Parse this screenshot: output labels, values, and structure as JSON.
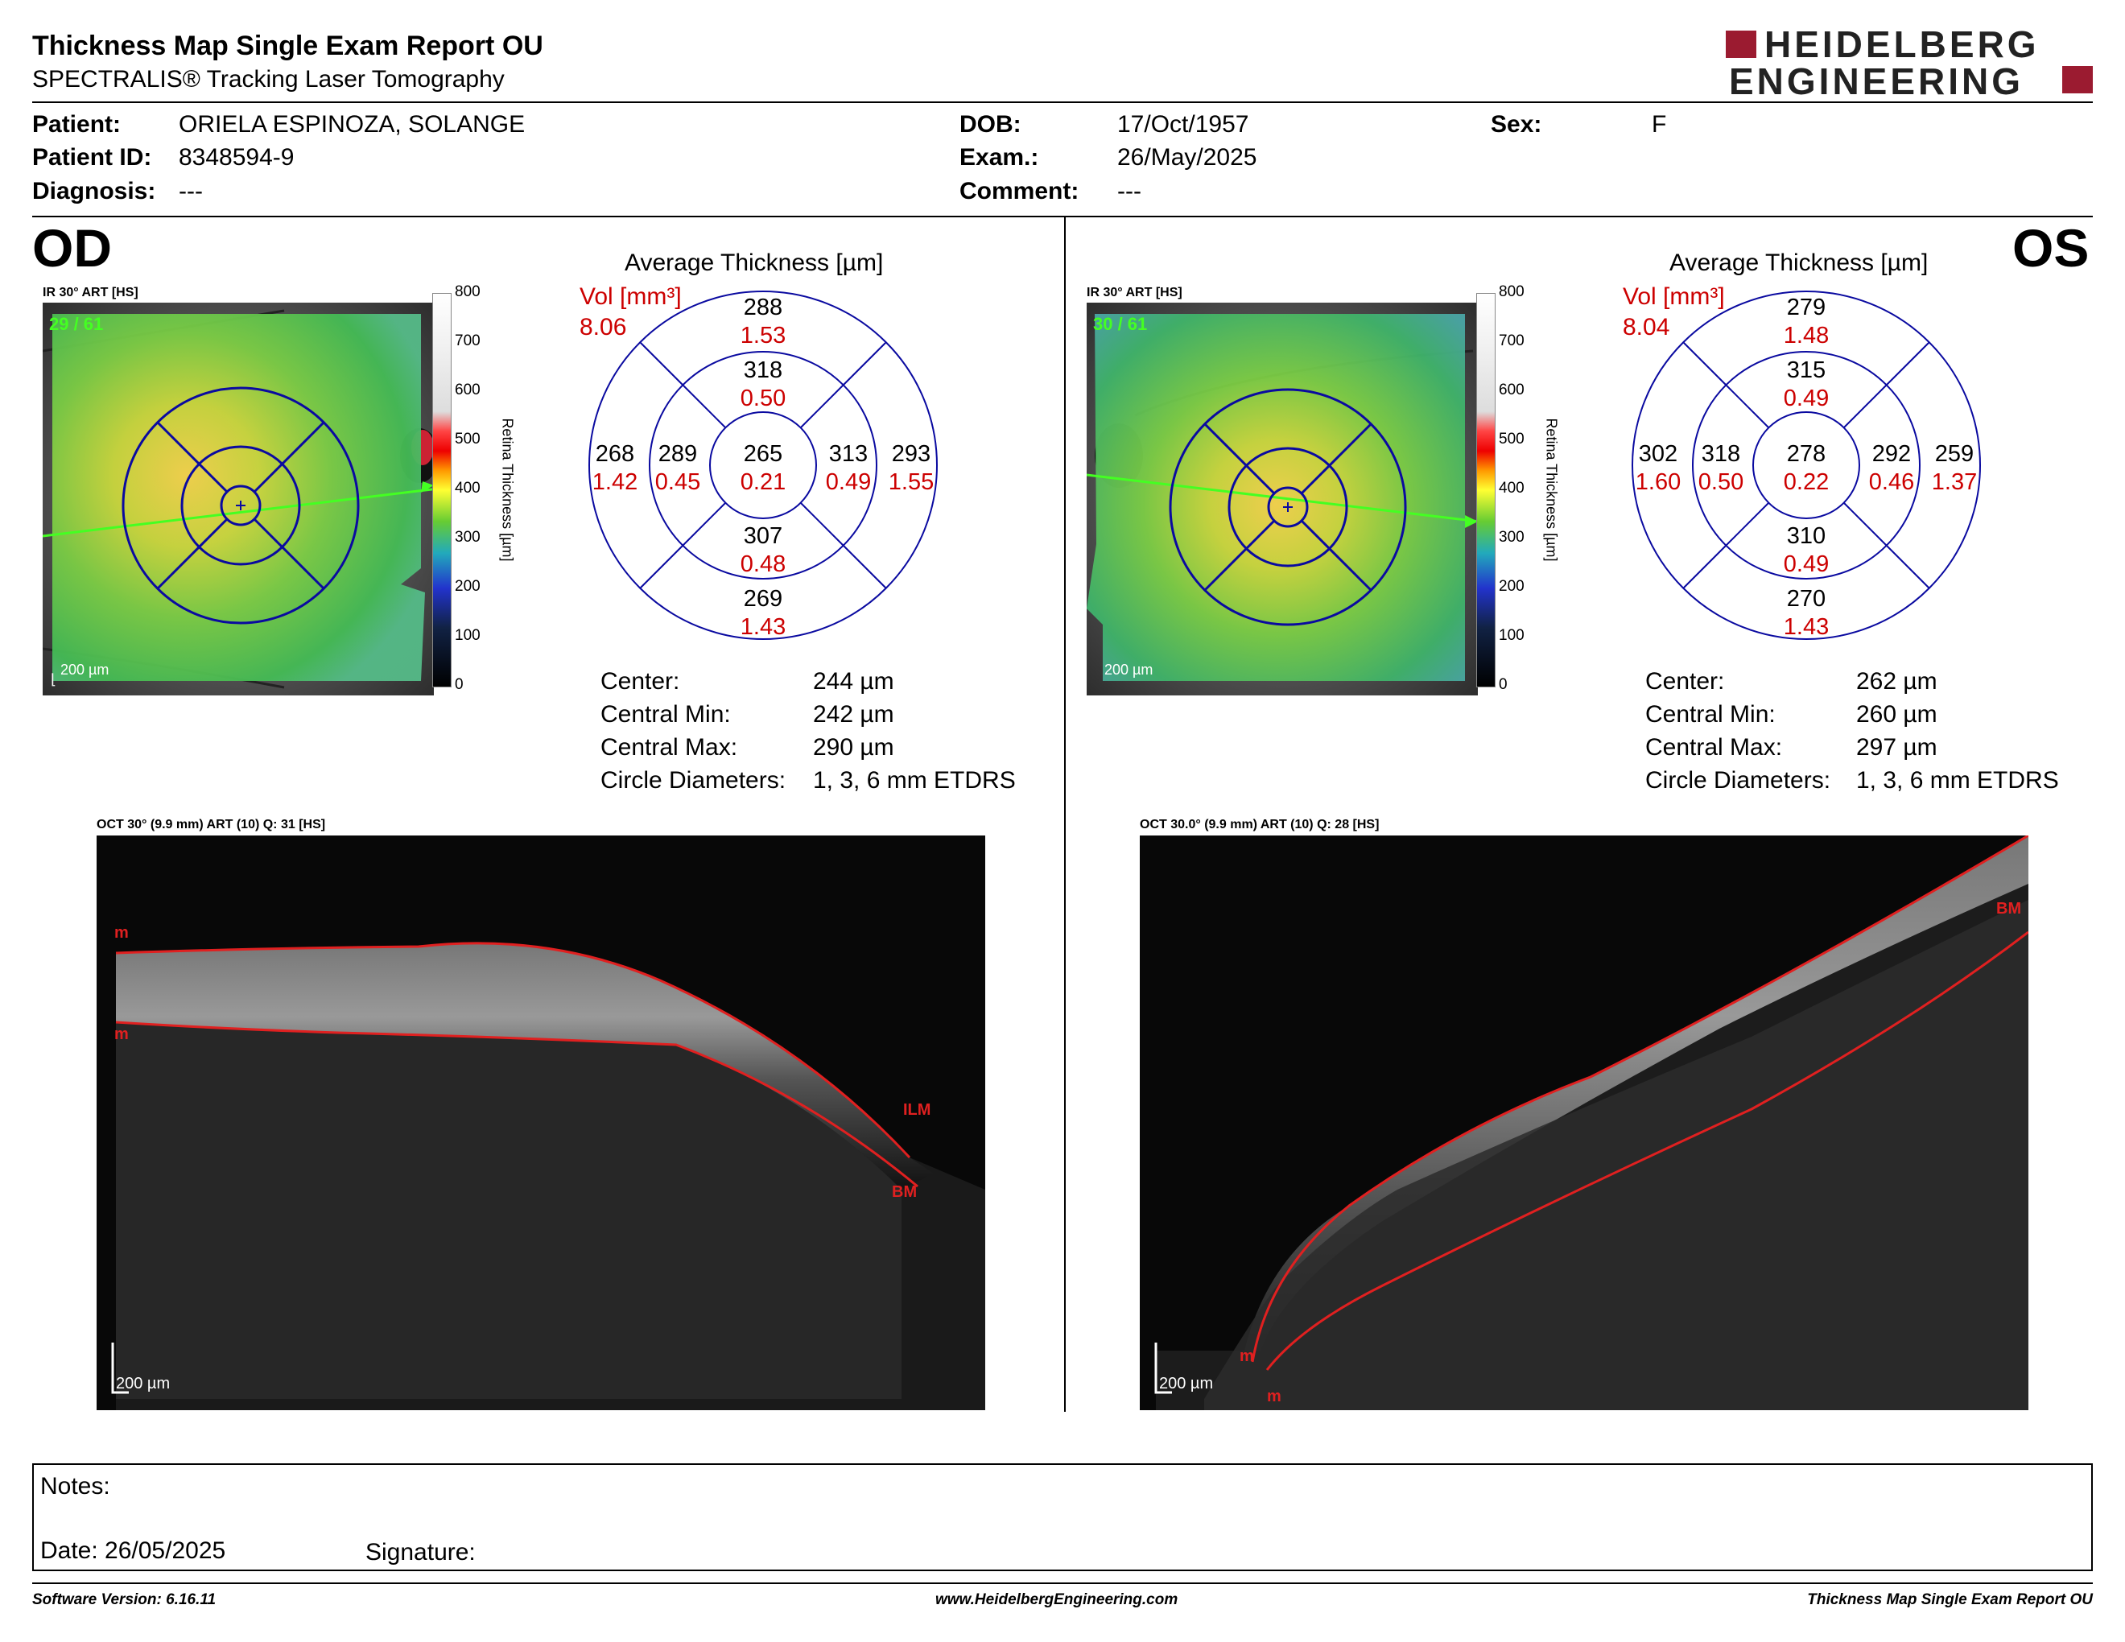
{
  "header": {
    "title": "Thickness Map Single Exam Report OU",
    "subtitle": "SPECTRALIS® Tracking Laser Tomography",
    "logo_line1": "HEIDELBERG",
    "logo_line2": "ENGINEERING"
  },
  "patient": {
    "patient_label": "Patient:",
    "patient_value": "ORIELA ESPINOZA, SOLANGE",
    "id_label": "Patient ID:",
    "id_value": "8348594-9",
    "diagnosis_label": "Diagnosis:",
    "diagnosis_value": "---",
    "dob_label": "DOB:",
    "dob_value": "17/Oct/1957",
    "exam_label": "Exam.:",
    "exam_value": "26/May/2025",
    "comment_label": "Comment:",
    "comment_value": "---",
    "sex_label": "Sex:",
    "sex_value": "F"
  },
  "od": {
    "eye": "OD",
    "ir_label": "IR 30° ART [HS]",
    "frames": "29 / 61",
    "scale": "200 µm",
    "avg_title": "Average Thickness [µm]",
    "vol_label": "Vol [mm³]",
    "vol_total": "8.06",
    "sectors": {
      "outer_sup": [
        "288",
        "1.53"
      ],
      "inner_sup": [
        "318",
        "0.50"
      ],
      "outer_temp": [
        "268",
        "1.42"
      ],
      "inner_temp": [
        "289",
        "0.45"
      ],
      "center": [
        "265",
        "0.21"
      ],
      "inner_nas": [
        "313",
        "0.49"
      ],
      "outer_nas": [
        "293",
        "1.55"
      ],
      "inner_inf": [
        "307",
        "0.48"
      ],
      "outer_inf": [
        "269",
        "1.43"
      ]
    },
    "stats": [
      {
        "label": "Center:",
        "value": "244 µm"
      },
      {
        "label": "Central Min:",
        "value": "242 µm"
      },
      {
        "label": "Central Max:",
        "value": "290 µm"
      },
      {
        "label": "Circle Diameters:",
        "value": "1, 3, 6 mm ETDRS"
      }
    ],
    "oct_label": "OCT 30° (9.9 mm) ART (10) Q: 31 [HS]",
    "oct_scale": "200 µm",
    "layer_top": "m",
    "layer_bottom": "m",
    "ilm": "ILM",
    "bm": "BM"
  },
  "os": {
    "eye": "OS",
    "ir_label": "IR 30° ART [HS]",
    "frames": "30 / 61",
    "scale": "200 µm",
    "avg_title": "Average Thickness [µm]",
    "vol_label": "Vol [mm³]",
    "vol_total": "8.04",
    "sectors": {
      "outer_sup": [
        "279",
        "1.48"
      ],
      "inner_sup": [
        "315",
        "0.49"
      ],
      "outer_temp": [
        "302",
        "1.60"
      ],
      "inner_temp": [
        "318",
        "0.50"
      ],
      "center": [
        "278",
        "0.22"
      ],
      "inner_nas": [
        "292",
        "0.46"
      ],
      "outer_nas": [
        "259",
        "1.37"
      ],
      "inner_inf": [
        "310",
        "0.49"
      ],
      "outer_inf": [
        "270",
        "1.43"
      ]
    },
    "stats": [
      {
        "label": "Center:",
        "value": "262 µm"
      },
      {
        "label": "Central Min:",
        "value": "260 µm"
      },
      {
        "label": "Central Max:",
        "value": "297 µm"
      },
      {
        "label": "Circle Diameters:",
        "value": "1, 3, 6 mm ETDRS"
      }
    ],
    "oct_label": "OCT 30.0° (9.9 mm) ART (10) Q: 28 [HS]",
    "oct_scale": "200 µm",
    "layer_top": "m",
    "layer_bottom": "m",
    "bm": "BM"
  },
  "colorbar": {
    "ticks": [
      "800",
      "700",
      "600",
      "500",
      "400",
      "300",
      "200",
      "100",
      "0"
    ],
    "title": "Retina  Thickness [µm]"
  },
  "notes": {
    "notes_label": "Notes:",
    "date_label": "Date: 26/05/2025",
    "signature_label": "Signature:"
  },
  "footer": {
    "version": "Software Version: 6.16.11",
    "url": "www.HeidelbergEngineering.com",
    "report": "Thickness Map Single Exam Report OU"
  },
  "colors": {
    "value_red": "#cc0000",
    "etdrs_blue": "#0a0aa0",
    "logo_red": "#9b1b30"
  }
}
